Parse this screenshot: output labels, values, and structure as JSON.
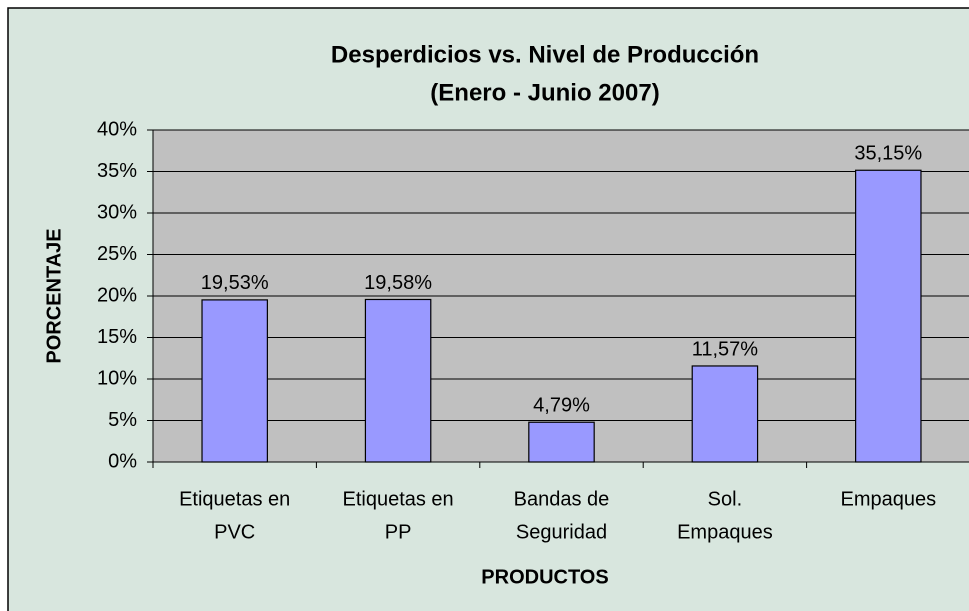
{
  "chart_data": {
    "type": "bar",
    "title": "Desperdicios vs. Nivel de Producción",
    "subtitle": "(Enero - Junio 2007)",
    "x_label": "PRODUCTOS",
    "y_label": "PORCENTAJE",
    "categories": [
      [
        "Etiquetas en",
        "PVC"
      ],
      [
        "Etiquetas en",
        "PP"
      ],
      [
        "Bandas de",
        "Seguridad"
      ],
      [
        "Sol.",
        "Empaques"
      ],
      [
        "Empaques"
      ]
    ],
    "values": [
      19.53,
      19.58,
      4.79,
      11.57,
      35.15
    ],
    "value_labels": [
      "19,53%",
      "19,58%",
      "4,79%",
      "11,57%",
      "35,15%"
    ],
    "color": "#9999ff",
    "ylim": [
      0,
      40
    ],
    "yticks": [
      {
        "value": 0,
        "label": "0%"
      },
      {
        "value": 5,
        "label": "5%"
      },
      {
        "value": 10,
        "label": "10%"
      },
      {
        "value": 15,
        "label": "15%"
      },
      {
        "value": 20,
        "label": "20%"
      },
      {
        "value": 25,
        "label": "25%"
      },
      {
        "value": 30,
        "label": "30%"
      },
      {
        "value": 35,
        "label": "35%"
      },
      {
        "value": 40,
        "label": "40%"
      }
    ],
    "grid": true
  }
}
